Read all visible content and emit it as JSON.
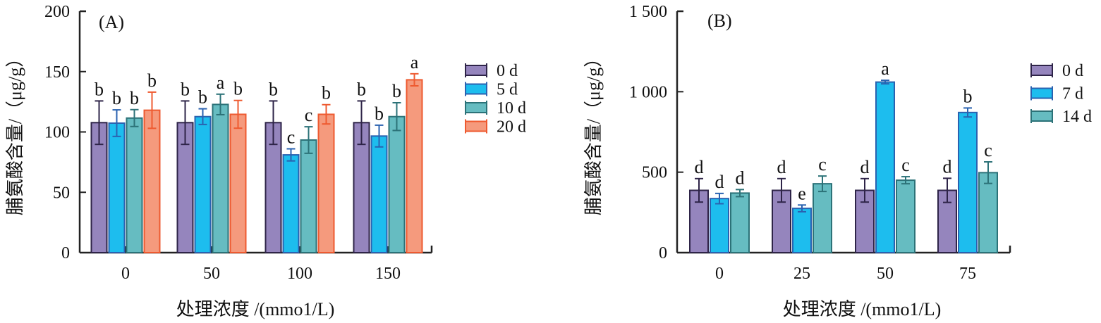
{
  "chart_data": [
    {
      "type": "bar",
      "panel": "(A)",
      "title": "",
      "xlabel": "处理浓度 /(mmo1/L)",
      "ylabel": "脯氨酸含量/（μg/g）",
      "ylim": [
        0,
        200
      ],
      "yticks": [
        0,
        50,
        100,
        150,
        200
      ],
      "ytick_labels": [
        "0",
        "50",
        "100",
        "150",
        "200"
      ],
      "categories": [
        "0",
        "50",
        "100",
        "150"
      ],
      "legend_position": "right",
      "series": [
        {
          "name": "0 d",
          "color": "#9585bd",
          "edge": "#2e2448",
          "values": [
            107.7,
            107.7,
            107.7,
            107.7
          ],
          "errors": [
            18,
            18,
            18,
            18
          ],
          "letters": [
            "b",
            "b",
            "b",
            "b"
          ]
        },
        {
          "name": "5 d",
          "color": "#1dbdee",
          "edge": "#2a62b0",
          "values": [
            107.3,
            112.7,
            81,
            96.6
          ],
          "errors": [
            11,
            6.5,
            5,
            9
          ],
          "letters": [
            "b",
            "b",
            "c",
            "b"
          ]
        },
        {
          "name": "10 d",
          "color": "#66bcc1",
          "edge": "#2c7278",
          "values": [
            111.5,
            122.8,
            93.3,
            112.7
          ],
          "errors": [
            7,
            8.5,
            11,
            11.5
          ],
          "letters": [
            "b",
            "a",
            "c",
            "b"
          ]
        },
        {
          "name": "20 d",
          "color": "#f59a7d",
          "edge": "#ee5a30",
          "values": [
            118,
            114.6,
            114.6,
            143.2
          ],
          "errors": [
            15,
            11.5,
            8,
            5
          ],
          "letters": [
            "b",
            "b",
            "b",
            "a"
          ]
        }
      ]
    },
    {
      "type": "bar",
      "panel": "(B)",
      "title": "",
      "xlabel": "处理浓度 /(mmo1/L)",
      "ylabel": "脯氨酸含量/（μg/g）",
      "ylim": [
        0,
        1500
      ],
      "yticks": [
        0,
        500,
        1000,
        1500
      ],
      "ytick_labels": [
        "0",
        "500",
        "1 000",
        "1 500"
      ],
      "categories": [
        "0",
        "25",
        "50",
        "75"
      ],
      "legend_position": "right",
      "series": [
        {
          "name": "0 d",
          "color": "#9585bd",
          "edge": "#2e2448",
          "values": [
            387,
            387,
            387,
            387
          ],
          "errors": [
            73,
            73,
            73,
            75
          ],
          "letters": [
            "d",
            "d",
            "d",
            "d"
          ]
        },
        {
          "name": "7 d",
          "color": "#1dbdee",
          "edge": "#2a62b0",
          "values": [
            336,
            275,
            1060,
            871
          ],
          "errors": [
            32,
            21,
            11,
            28
          ],
          "letters": [
            "d",
            "e",
            "a",
            "b"
          ]
        },
        {
          "name": "14 d",
          "color": "#66bcc1",
          "edge": "#2c7278",
          "values": [
            370,
            428,
            450,
            497
          ],
          "errors": [
            22,
            48,
            22,
            67
          ],
          "letters": [
            "d",
            "c",
            "c",
            "c"
          ]
        }
      ]
    }
  ]
}
